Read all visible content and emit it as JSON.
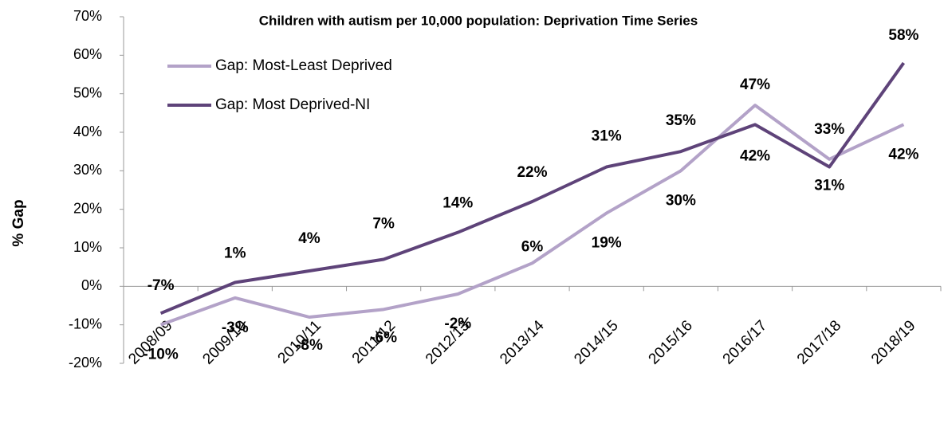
{
  "chart_data": {
    "type": "line",
    "title": "Children with autism per 10,000 population: Deprivation Time Series",
    "y_label": "% Gap",
    "categories": [
      "2008/09",
      "2009/10",
      "2010/11",
      "2011/12",
      "2012/13",
      "2013/14",
      "2014/15",
      "2015/16",
      "2016/17",
      "2017/18",
      "2018/19"
    ],
    "series": [
      {
        "name": "Gap: Most-Least Deprived",
        "color": "#b3a2c8",
        "values": [
          -10,
          -3,
          -8,
          -6,
          -2,
          6,
          19,
          30,
          47,
          33,
          42
        ],
        "value_labels": [
          "-10%",
          "-3%",
          "-8%",
          "-6%",
          "-2%",
          "6%",
          "19%",
          "30%",
          "47%",
          "33%",
          "42%"
        ]
      },
      {
        "name": "Gap: Most Deprived-NI",
        "color": "#5e4379",
        "values": [
          -7,
          1,
          4,
          7,
          14,
          22,
          31,
          35,
          42,
          31,
          58
        ],
        "value_labels": [
          "-7%",
          "1%",
          "4%",
          "7%",
          "14%",
          "22%",
          "31%",
          "35%",
          "42%",
          "31%",
          "58%"
        ]
      }
    ],
    "ylim": [
      -20,
      70
    ],
    "yticks": [
      {
        "value": -20,
        "label": "-20%"
      },
      {
        "value": -10,
        "label": "-10%"
      },
      {
        "value": 0,
        "label": "0%"
      },
      {
        "value": 10,
        "label": "10%"
      },
      {
        "value": 20,
        "label": "20%"
      },
      {
        "value": 30,
        "label": "30%"
      },
      {
        "value": 40,
        "label": "40%"
      },
      {
        "value": 50,
        "label": "50%"
      },
      {
        "value": 60,
        "label": "60%"
      },
      {
        "value": 70,
        "label": "70%"
      }
    ],
    "grid": false,
    "legend": "top-left"
  }
}
